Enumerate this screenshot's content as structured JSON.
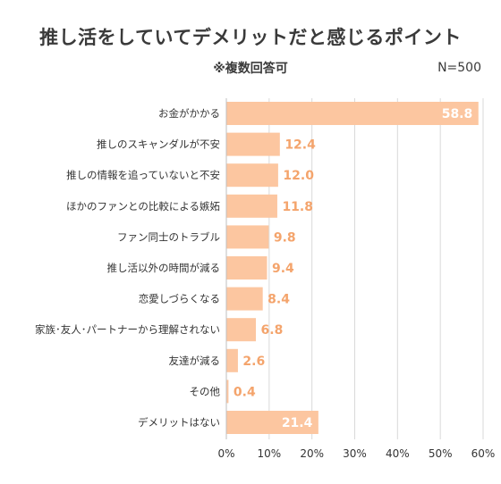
{
  "chart_data": {
    "type": "bar",
    "orientation": "horizontal",
    "title": "推し活をしていてデメリットだと感じるポイント",
    "subtitle": "※複数回答可",
    "note": "N=500",
    "categories": [
      "お金がかかる",
      "推しのスキャンダルが不安",
      "推しの情報を追っていないと不安",
      "ほかのファンとの比較による嫉妬",
      "ファン同士のトラブル",
      "推し活以外の時間が減る",
      "恋愛しづらくなる",
      "家族･友人･パートナーから理解されない",
      "友達が減る",
      "その他",
      "デメリットはない"
    ],
    "values": [
      58.8,
      12.4,
      12.0,
      11.8,
      9.8,
      9.4,
      8.4,
      6.8,
      2.6,
      0.4,
      21.4
    ],
    "value_labels": [
      "58.8",
      "12.4",
      "12.0",
      "11.8",
      "9.8",
      "9.4",
      "8.4",
      "6.8",
      "2.6",
      "0.4",
      "21.4"
    ],
    "xlim": [
      0,
      60
    ],
    "xticks": [
      "0%",
      "10%",
      "20%",
      "30%",
      "40%",
      "50%",
      "60%"
    ],
    "grid": true,
    "colors": {
      "bar": "#fcc6a0",
      "value_label": "#f4a46c",
      "value_label_inside": "#ffffff",
      "grid": "#d9d9d9",
      "axis": "#bfbfbf"
    }
  }
}
